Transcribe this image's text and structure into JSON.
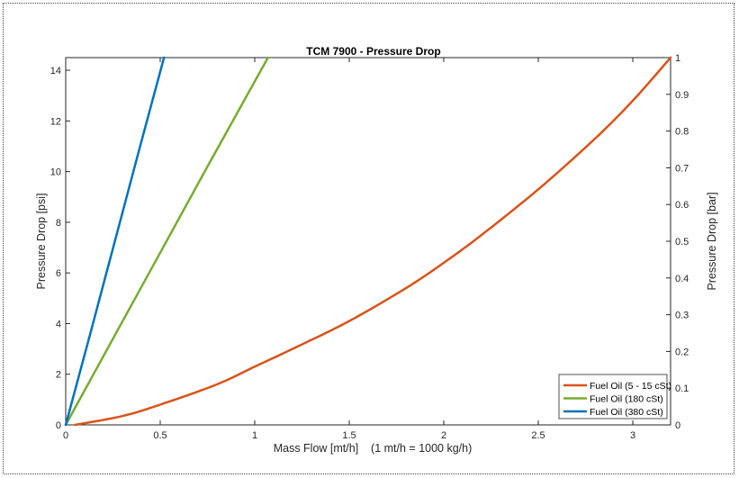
{
  "chart_data": {
    "type": "line",
    "title": "TCM 7900 - Pressure Drop",
    "xlabel": "Mass Flow [mt/h]    (1 mt/h = 1000 kg/h)",
    "ylabel": "Pressure Drop [psi]",
    "y2label": "Pressure Drop [bar]",
    "xlim": [
      0,
      3.2
    ],
    "ylim": [
      0,
      14.5
    ],
    "y2lim": [
      0,
      1
    ],
    "xticks": [
      "0",
      "0.5",
      "1",
      "1.5",
      "2",
      "2.5",
      "3"
    ],
    "yticks": [
      "0",
      "2",
      "4",
      "6",
      "8",
      "10",
      "12",
      "14"
    ],
    "y2ticks": [
      "0",
      "0.1",
      "0.2",
      "0.3",
      "0.4",
      "0.5",
      "0.6",
      "0.7",
      "0.8",
      "0.9",
      "1"
    ],
    "grid": false,
    "legend_position": "bottom-right",
    "series": [
      {
        "name": "Fuel Oil (5 - 15 cSt)",
        "color": "#D95319",
        "x": [
          0.05,
          0.3,
          0.5,
          0.8,
          1.0,
          1.2,
          1.5,
          1.8,
          2.0,
          2.2,
          2.5,
          2.8,
          3.0,
          3.2
        ],
        "y": [
          0,
          0.35,
          0.8,
          1.6,
          2.3,
          3.0,
          4.1,
          5.4,
          6.4,
          7.5,
          9.3,
          11.3,
          12.8,
          14.5
        ]
      },
      {
        "name": "Fuel Oil (180 cSt)",
        "color": "#77AC30",
        "x": [
          0,
          0.25,
          0.5,
          0.75,
          1.07
        ],
        "y": [
          0,
          3.4,
          6.8,
          10.2,
          14.5
        ]
      },
      {
        "name": "Fuel Oil (380 cSt)",
        "color": "#0072BD",
        "x": [
          0,
          0.13,
          0.26,
          0.39,
          0.52
        ],
        "y": [
          0,
          3.6,
          7.25,
          10.9,
          14.5
        ]
      }
    ]
  }
}
